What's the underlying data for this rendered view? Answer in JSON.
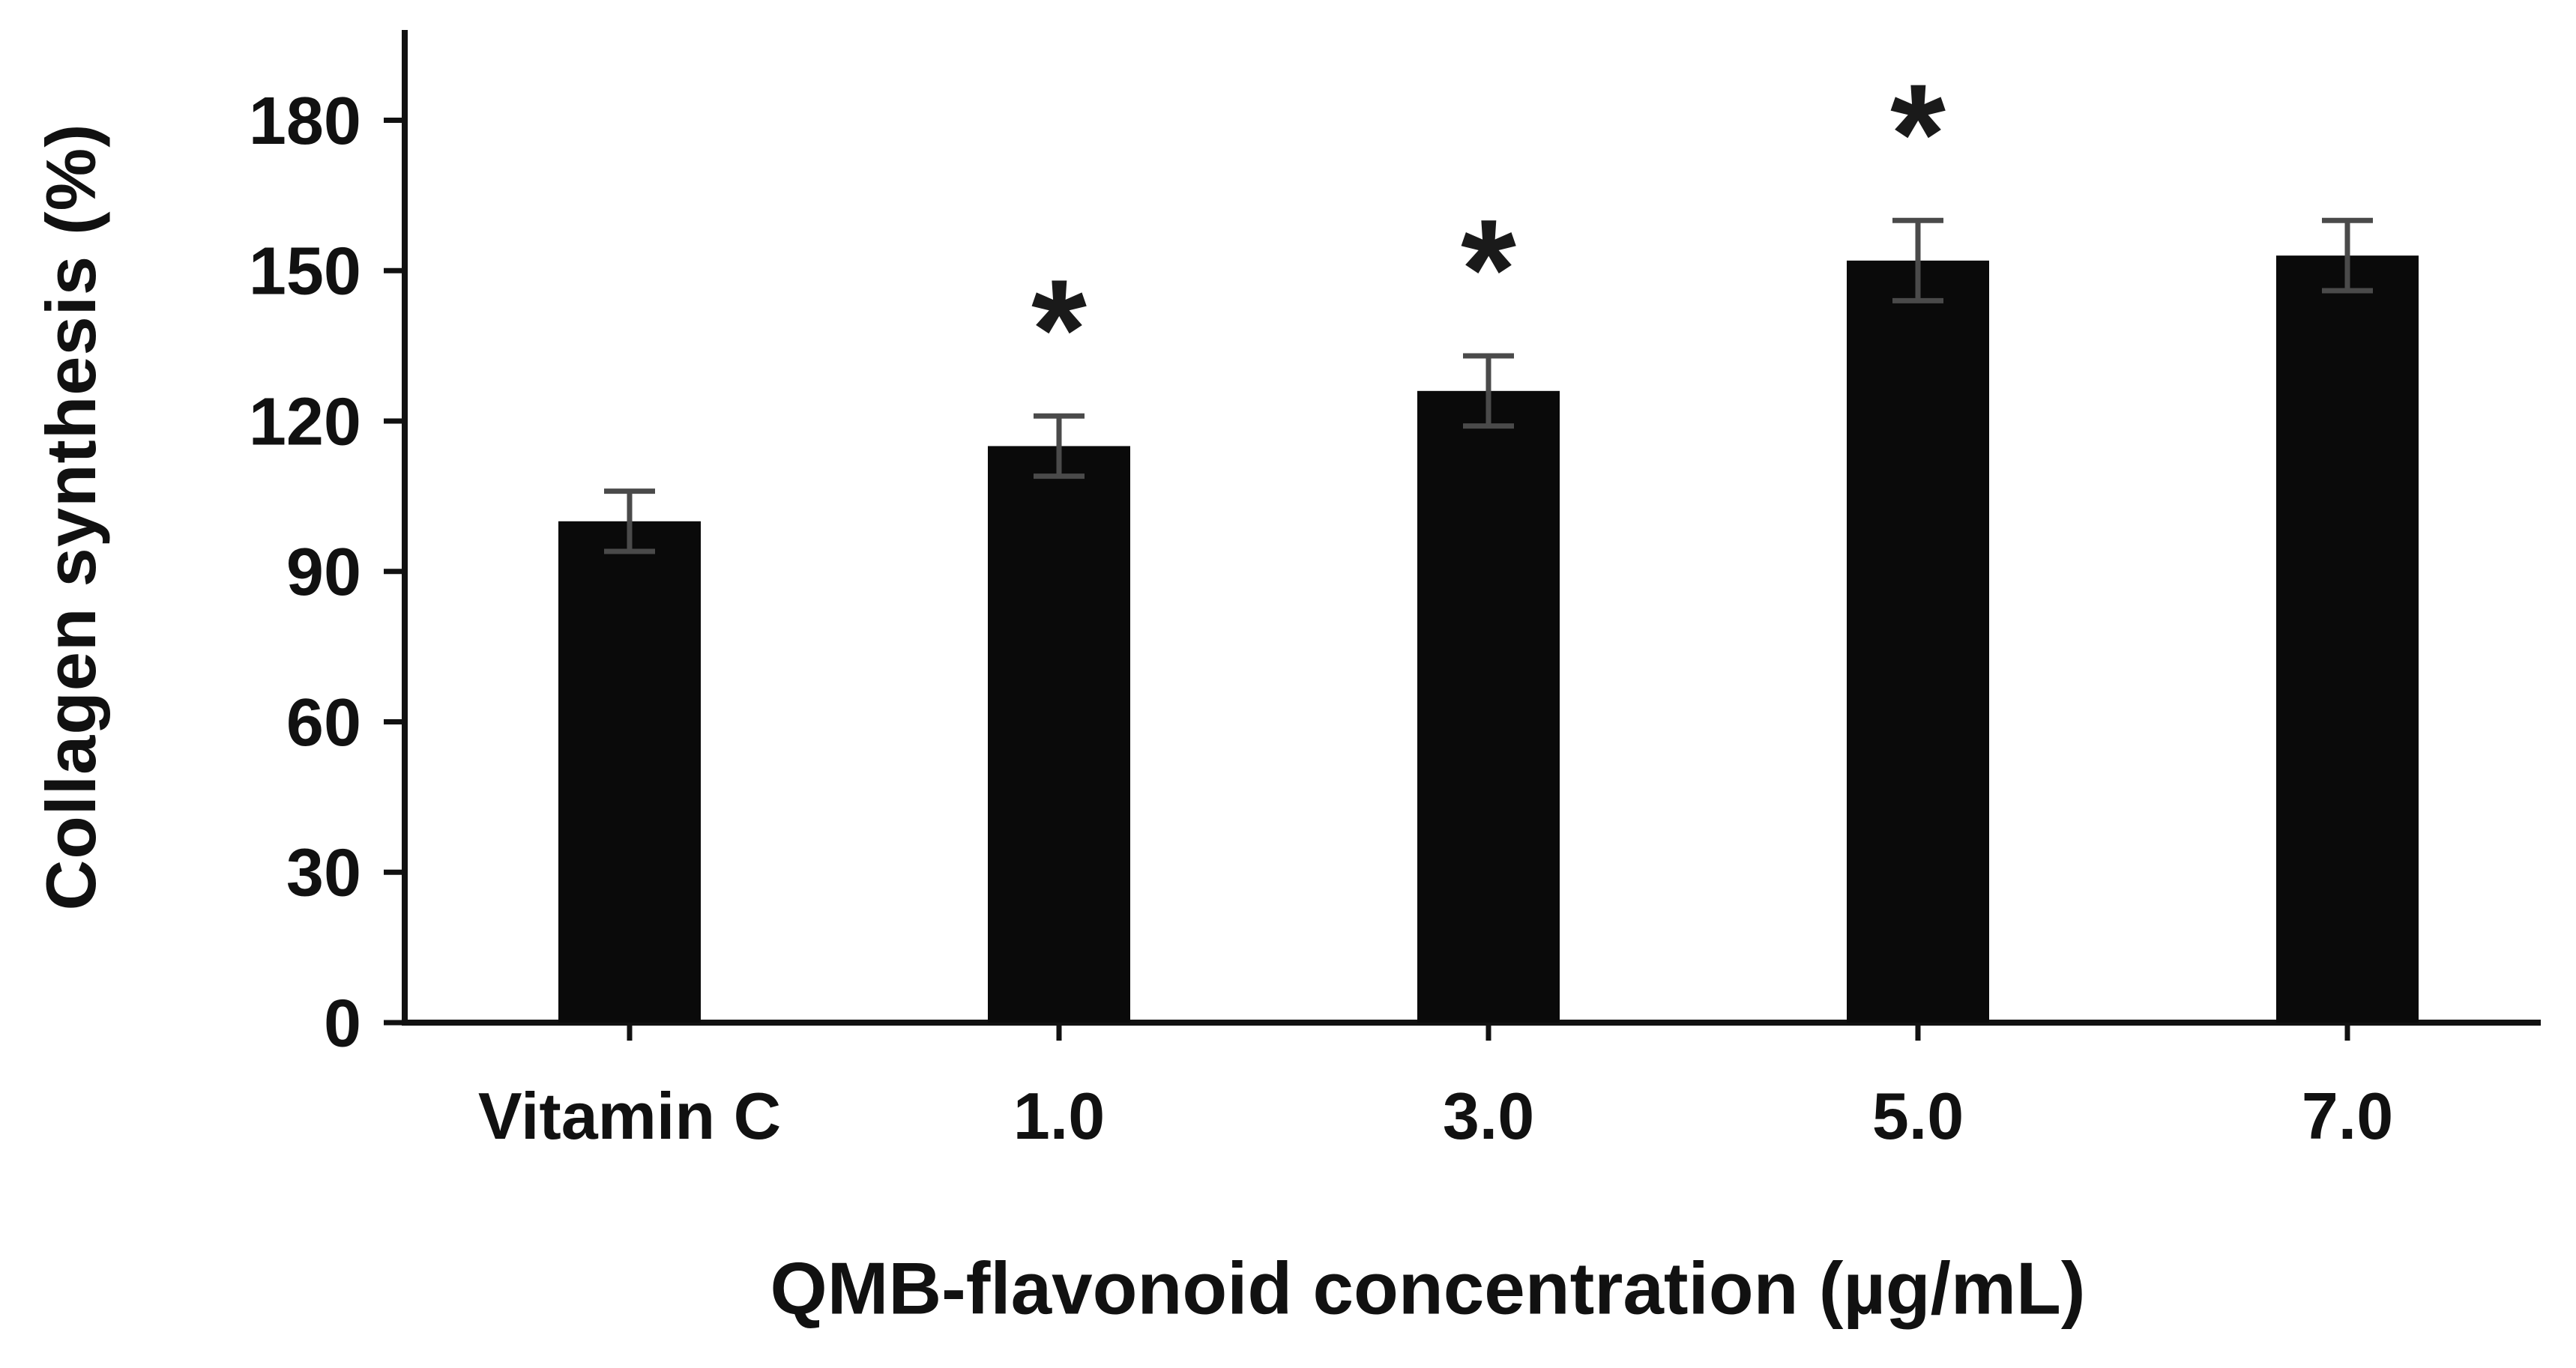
{
  "chart_data": {
    "type": "bar",
    "categories": [
      "Vitamin C",
      "1.0",
      "3.0",
      "5.0",
      "7.0"
    ],
    "values": [
      100,
      115,
      126,
      152,
      153
    ],
    "errors": [
      6,
      6,
      7,
      8,
      7
    ],
    "significance": [
      "",
      "*",
      "*",
      "*",
      ""
    ],
    "title": "",
    "xlabel": "QMB-flavonoid concentration (µg/mL)",
    "ylabel": "Collagen synthesis (%)",
    "yticks": [
      0,
      30,
      60,
      90,
      120,
      150,
      180
    ],
    "ylim": [
      0,
      198
    ],
    "grid": false,
    "legend": "none",
    "bar_color": "#0a0a0a",
    "error_color": "#4a4a4a",
    "axis_color": "#111111"
  }
}
